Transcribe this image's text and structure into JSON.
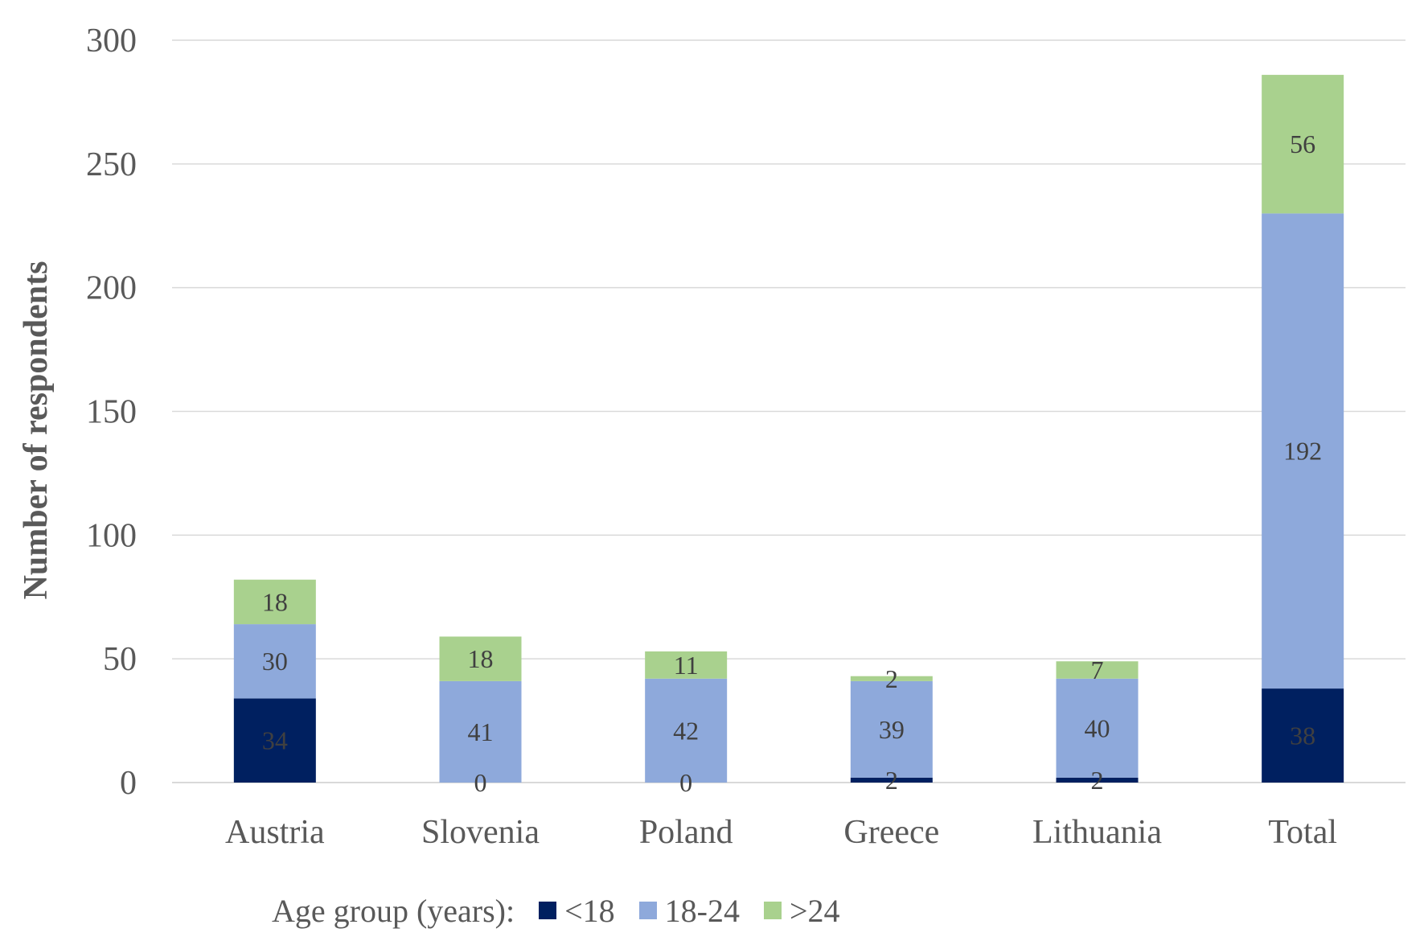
{
  "chart_data": {
    "type": "bar",
    "stacked": true,
    "title": "",
    "xlabel": "",
    "ylabel": "Number of respondents",
    "ylim": [
      0,
      300
    ],
    "yticks": [
      0,
      50,
      100,
      150,
      200,
      250,
      300
    ],
    "grid": true,
    "categories": [
      "Austria",
      "Slovenia",
      "Poland",
      "Greece",
      "Lithuania",
      "Total"
    ],
    "series": [
      {
        "name": "<18",
        "values": [
          34,
          0,
          0,
          2,
          2,
          38
        ],
        "color": "#002060",
        "label_color": "#404040"
      },
      {
        "name": "18-24",
        "values": [
          30,
          41,
          42,
          39,
          40,
          192
        ],
        "color": "#8EA9DB",
        "label_color": "#404040"
      },
      {
        "name": ">24",
        "values": [
          18,
          18,
          11,
          2,
          7,
          56
        ],
        "color": "#A9D18E",
        "label_color": "#404040"
      }
    ],
    "legend_title": "Age group (years):",
    "legend_position": "bottom"
  }
}
